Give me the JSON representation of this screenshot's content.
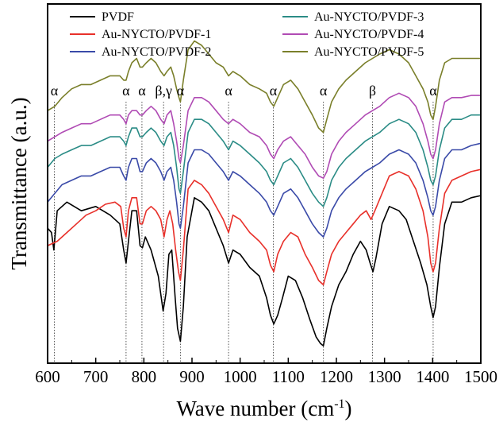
{
  "chart_data": {
    "type": "line",
    "xlabel": "Wave number (cm",
    "xlabel_sup": "-1",
    "xlabel_close": ")",
    "ylabel": "Transmittance (a.u.)",
    "xlim": [
      600,
      1500
    ],
    "xticks": [
      600,
      700,
      800,
      900,
      1000,
      1100,
      1200,
      1300,
      1400,
      1500
    ],
    "grid": false,
    "legend_position": "top",
    "reference_lines": [
      {
        "x": 614,
        "label": "α"
      },
      {
        "x": 763,
        "label": "α"
      },
      {
        "x": 796,
        "label": "α"
      },
      {
        "x": 841,
        "label": "β,γ"
      },
      {
        "x": 876,
        "label": "α"
      },
      {
        "x": 976,
        "label": "α"
      },
      {
        "x": 1069,
        "label": "α"
      },
      {
        "x": 1173,
        "label": "α"
      },
      {
        "x": 1275,
        "label": "β"
      },
      {
        "x": 1401,
        "label": "α"
      }
    ],
    "series": [
      {
        "name": "PVDF",
        "color": "#000000",
        "offset": 0,
        "x": [
          600,
          608,
          613,
          620,
          640,
          670,
          700,
          730,
          750,
          758,
          763,
          768,
          775,
          785,
          792,
          797,
          803,
          815,
          830,
          840,
          846,
          852,
          858,
          865,
          870,
          876,
          882,
          890,
          905,
          920,
          935,
          950,
          965,
          976,
          985,
          1000,
          1020,
          1040,
          1055,
          1063,
          1070,
          1078,
          1088,
          1100,
          1115,
          1130,
          1145,
          1158,
          1167,
          1173,
          1180,
          1190,
          1205,
          1220,
          1235,
          1250,
          1262,
          1270,
          1276,
          1282,
          1295,
          1310,
          1330,
          1345,
          1360,
          1375,
          1388,
          1396,
          1401,
          1406,
          1414,
          1425,
          1440,
          1460,
          1480,
          1500
        ],
        "y": [
          0.72,
          0.7,
          0.62,
          0.8,
          0.84,
          0.8,
          0.82,
          0.78,
          0.74,
          0.62,
          0.56,
          0.66,
          0.8,
          0.8,
          0.64,
          0.63,
          0.68,
          0.62,
          0.5,
          0.34,
          0.42,
          0.6,
          0.62,
          0.4,
          0.26,
          0.2,
          0.36,
          0.68,
          0.86,
          0.84,
          0.8,
          0.72,
          0.64,
          0.56,
          0.62,
          0.6,
          0.54,
          0.5,
          0.4,
          0.32,
          0.28,
          0.32,
          0.4,
          0.5,
          0.48,
          0.4,
          0.3,
          0.22,
          0.19,
          0.18,
          0.26,
          0.36,
          0.46,
          0.52,
          0.6,
          0.66,
          0.62,
          0.56,
          0.52,
          0.58,
          0.74,
          0.82,
          0.8,
          0.76,
          0.66,
          0.56,
          0.46,
          0.36,
          0.31,
          0.36,
          0.54,
          0.74,
          0.84,
          0.84,
          0.86,
          0.87
        ]
      },
      {
        "name": "Au-NYCTO/PVDF-1",
        "color": "#e8302a",
        "offset": 0,
        "x": [
          600,
          620,
          640,
          660,
          680,
          700,
          720,
          740,
          752,
          758,
          763,
          768,
          775,
          785,
          792,
          797,
          805,
          815,
          825,
          835,
          842,
          848,
          854,
          860,
          866,
          872,
          876,
          882,
          892,
          905,
          920,
          935,
          950,
          965,
          976,
          985,
          1000,
          1020,
          1040,
          1055,
          1063,
          1070,
          1078,
          1090,
          1105,
          1120,
          1135,
          1150,
          1163,
          1173,
          1180,
          1190,
          1205,
          1220,
          1235,
          1250,
          1262,
          1272,
          1280,
          1295,
          1310,
          1330,
          1350,
          1365,
          1380,
          1390,
          1396,
          1401,
          1406,
          1414,
          1425,
          1440,
          1460,
          1480,
          1500
        ],
        "y": [
          0.64,
          0.66,
          0.7,
          0.74,
          0.78,
          0.8,
          0.83,
          0.84,
          0.82,
          0.72,
          0.68,
          0.8,
          0.86,
          0.86,
          0.74,
          0.74,
          0.8,
          0.82,
          0.8,
          0.76,
          0.68,
          0.76,
          0.8,
          0.74,
          0.62,
          0.52,
          0.48,
          0.62,
          0.9,
          0.94,
          0.92,
          0.88,
          0.82,
          0.76,
          0.7,
          0.78,
          0.76,
          0.7,
          0.66,
          0.62,
          0.55,
          0.52,
          0.6,
          0.66,
          0.7,
          0.68,
          0.6,
          0.54,
          0.48,
          0.46,
          0.52,
          0.6,
          0.66,
          0.7,
          0.74,
          0.78,
          0.8,
          0.76,
          0.8,
          0.88,
          0.96,
          0.98,
          0.96,
          0.9,
          0.8,
          0.68,
          0.56,
          0.52,
          0.56,
          0.72,
          0.88,
          0.94,
          0.96,
          0.98,
          0.99
        ]
      },
      {
        "name": "Au-NYCTO/PVDF-2",
        "color": "#3a4aa8",
        "offset": 0,
        "x": [
          600,
          615,
          630,
          650,
          670,
          690,
          710,
          730,
          750,
          758,
          763,
          768,
          775,
          785,
          792,
          797,
          805,
          815,
          825,
          835,
          842,
          848,
          856,
          862,
          868,
          873,
          876,
          882,
          892,
          905,
          920,
          935,
          950,
          965,
          976,
          985,
          1000,
          1020,
          1040,
          1055,
          1063,
          1070,
          1078,
          1090,
          1105,
          1120,
          1135,
          1150,
          1163,
          1173,
          1180,
          1190,
          1205,
          1220,
          1240,
          1260,
          1275,
          1290,
          1310,
          1330,
          1350,
          1365,
          1380,
          1390,
          1396,
          1401,
          1406,
          1414,
          1425,
          1440,
          1460,
          1480,
          1500
        ],
        "y": [
          0.84,
          0.88,
          0.92,
          0.94,
          0.96,
          0.96,
          0.98,
          1.0,
          1.0,
          0.96,
          0.94,
          1.0,
          1.04,
          1.04,
          0.98,
          0.98,
          1.02,
          1.04,
          1.02,
          0.98,
          0.94,
          0.98,
          1.0,
          0.94,
          0.84,
          0.74,
          0.72,
          0.82,
          1.02,
          1.08,
          1.08,
          1.06,
          1.02,
          0.98,
          0.94,
          0.98,
          0.96,
          0.92,
          0.88,
          0.84,
          0.8,
          0.78,
          0.82,
          0.88,
          0.9,
          0.86,
          0.8,
          0.74,
          0.7,
          0.68,
          0.72,
          0.8,
          0.86,
          0.9,
          0.94,
          0.98,
          1.0,
          1.02,
          1.06,
          1.08,
          1.06,
          1.02,
          0.94,
          0.86,
          0.8,
          0.78,
          0.82,
          0.94,
          1.04,
          1.08,
          1.08,
          1.1,
          1.11
        ]
      },
      {
        "name": "Au-NYCTO/PVDF-3",
        "color": "#2b8c86",
        "offset": 0,
        "x": [
          600,
          615,
          630,
          650,
          670,
          690,
          710,
          730,
          750,
          758,
          763,
          768,
          775,
          785,
          792,
          797,
          805,
          815,
          825,
          835,
          842,
          848,
          856,
          862,
          868,
          873,
          876,
          882,
          892,
          905,
          920,
          935,
          950,
          965,
          976,
          985,
          1000,
          1020,
          1040,
          1055,
          1063,
          1070,
          1078,
          1090,
          1105,
          1120,
          1135,
          1150,
          1163,
          1173,
          1180,
          1190,
          1205,
          1220,
          1240,
          1260,
          1275,
          1290,
          1310,
          1330,
          1350,
          1365,
          1380,
          1390,
          1396,
          1401,
          1406,
          1414,
          1425,
          1440,
          1460,
          1480,
          1500
        ],
        "y": [
          1.0,
          1.04,
          1.06,
          1.08,
          1.1,
          1.1,
          1.12,
          1.14,
          1.14,
          1.12,
          1.1,
          1.14,
          1.18,
          1.18,
          1.14,
          1.14,
          1.16,
          1.18,
          1.16,
          1.12,
          1.1,
          1.14,
          1.16,
          1.1,
          1.0,
          0.9,
          0.88,
          0.98,
          1.16,
          1.22,
          1.22,
          1.2,
          1.16,
          1.12,
          1.08,
          1.12,
          1.1,
          1.06,
          1.02,
          0.98,
          0.94,
          0.92,
          0.96,
          1.02,
          1.04,
          1.0,
          0.94,
          0.88,
          0.84,
          0.82,
          0.86,
          0.94,
          1.0,
          1.04,
          1.08,
          1.12,
          1.14,
          1.16,
          1.2,
          1.22,
          1.2,
          1.16,
          1.08,
          1.0,
          0.94,
          0.92,
          0.96,
          1.08,
          1.18,
          1.22,
          1.22,
          1.24,
          1.24
        ]
      },
      {
        "name": "Au-NYCTO/PVDF-4",
        "color": "#b04bb4",
        "offset": 0,
        "x": [
          600,
          615,
          630,
          650,
          670,
          690,
          710,
          730,
          750,
          758,
          763,
          768,
          775,
          785,
          792,
          797,
          805,
          815,
          825,
          835,
          842,
          848,
          856,
          862,
          868,
          873,
          876,
          882,
          892,
          905,
          920,
          935,
          950,
          965,
          976,
          985,
          1000,
          1020,
          1040,
          1055,
          1063,
          1070,
          1078,
          1090,
          1105,
          1120,
          1135,
          1150,
          1163,
          1173,
          1180,
          1190,
          1205,
          1220,
          1240,
          1260,
          1275,
          1290,
          1310,
          1330,
          1350,
          1365,
          1380,
          1390,
          1396,
          1401,
          1406,
          1414,
          1425,
          1440,
          1460,
          1480,
          1500
        ],
        "y": [
          1.12,
          1.14,
          1.16,
          1.18,
          1.2,
          1.2,
          1.22,
          1.24,
          1.24,
          1.22,
          1.2,
          1.24,
          1.26,
          1.26,
          1.24,
          1.24,
          1.26,
          1.28,
          1.26,
          1.22,
          1.2,
          1.24,
          1.26,
          1.2,
          1.12,
          1.04,
          1.02,
          1.1,
          1.26,
          1.32,
          1.32,
          1.3,
          1.26,
          1.22,
          1.2,
          1.22,
          1.2,
          1.16,
          1.14,
          1.1,
          1.06,
          1.04,
          1.08,
          1.12,
          1.14,
          1.1,
          1.06,
          1.0,
          0.96,
          0.95,
          0.98,
          1.06,
          1.12,
          1.16,
          1.2,
          1.24,
          1.26,
          1.28,
          1.32,
          1.34,
          1.32,
          1.28,
          1.2,
          1.12,
          1.06,
          1.04,
          1.08,
          1.2,
          1.3,
          1.32,
          1.32,
          1.33,
          1.33
        ]
      },
      {
        "name": "Au-NYCTO/PVDF-5",
        "color": "#7a7f2a",
        "offset": 0,
        "x": [
          600,
          615,
          630,
          650,
          670,
          690,
          710,
          730,
          750,
          758,
          763,
          768,
          775,
          785,
          792,
          797,
          805,
          815,
          825,
          835,
          842,
          848,
          856,
          862,
          868,
          873,
          876,
          882,
          892,
          905,
          920,
          935,
          950,
          965,
          976,
          985,
          1000,
          1020,
          1040,
          1055,
          1063,
          1070,
          1078,
          1090,
          1105,
          1120,
          1135,
          1150,
          1163,
          1173,
          1180,
          1190,
          1205,
          1220,
          1240,
          1260,
          1275,
          1290,
          1310,
          1330,
          1350,
          1365,
          1380,
          1390,
          1396,
          1401,
          1406,
          1414,
          1425,
          1440,
          1460,
          1480,
          1500
        ],
        "y": [
          1.26,
          1.28,
          1.32,
          1.36,
          1.38,
          1.38,
          1.4,
          1.42,
          1.42,
          1.4,
          1.4,
          1.44,
          1.48,
          1.5,
          1.46,
          1.46,
          1.48,
          1.5,
          1.48,
          1.44,
          1.42,
          1.44,
          1.46,
          1.42,
          1.36,
          1.32,
          1.3,
          1.4,
          1.54,
          1.58,
          1.56,
          1.52,
          1.48,
          1.46,
          1.42,
          1.44,
          1.42,
          1.38,
          1.36,
          1.34,
          1.3,
          1.28,
          1.32,
          1.38,
          1.4,
          1.36,
          1.3,
          1.24,
          1.18,
          1.16,
          1.22,
          1.3,
          1.36,
          1.4,
          1.44,
          1.48,
          1.5,
          1.52,
          1.54,
          1.52,
          1.48,
          1.42,
          1.36,
          1.3,
          1.24,
          1.22,
          1.28,
          1.4,
          1.48,
          1.5,
          1.5,
          1.5,
          1.5
        ]
      }
    ]
  }
}
